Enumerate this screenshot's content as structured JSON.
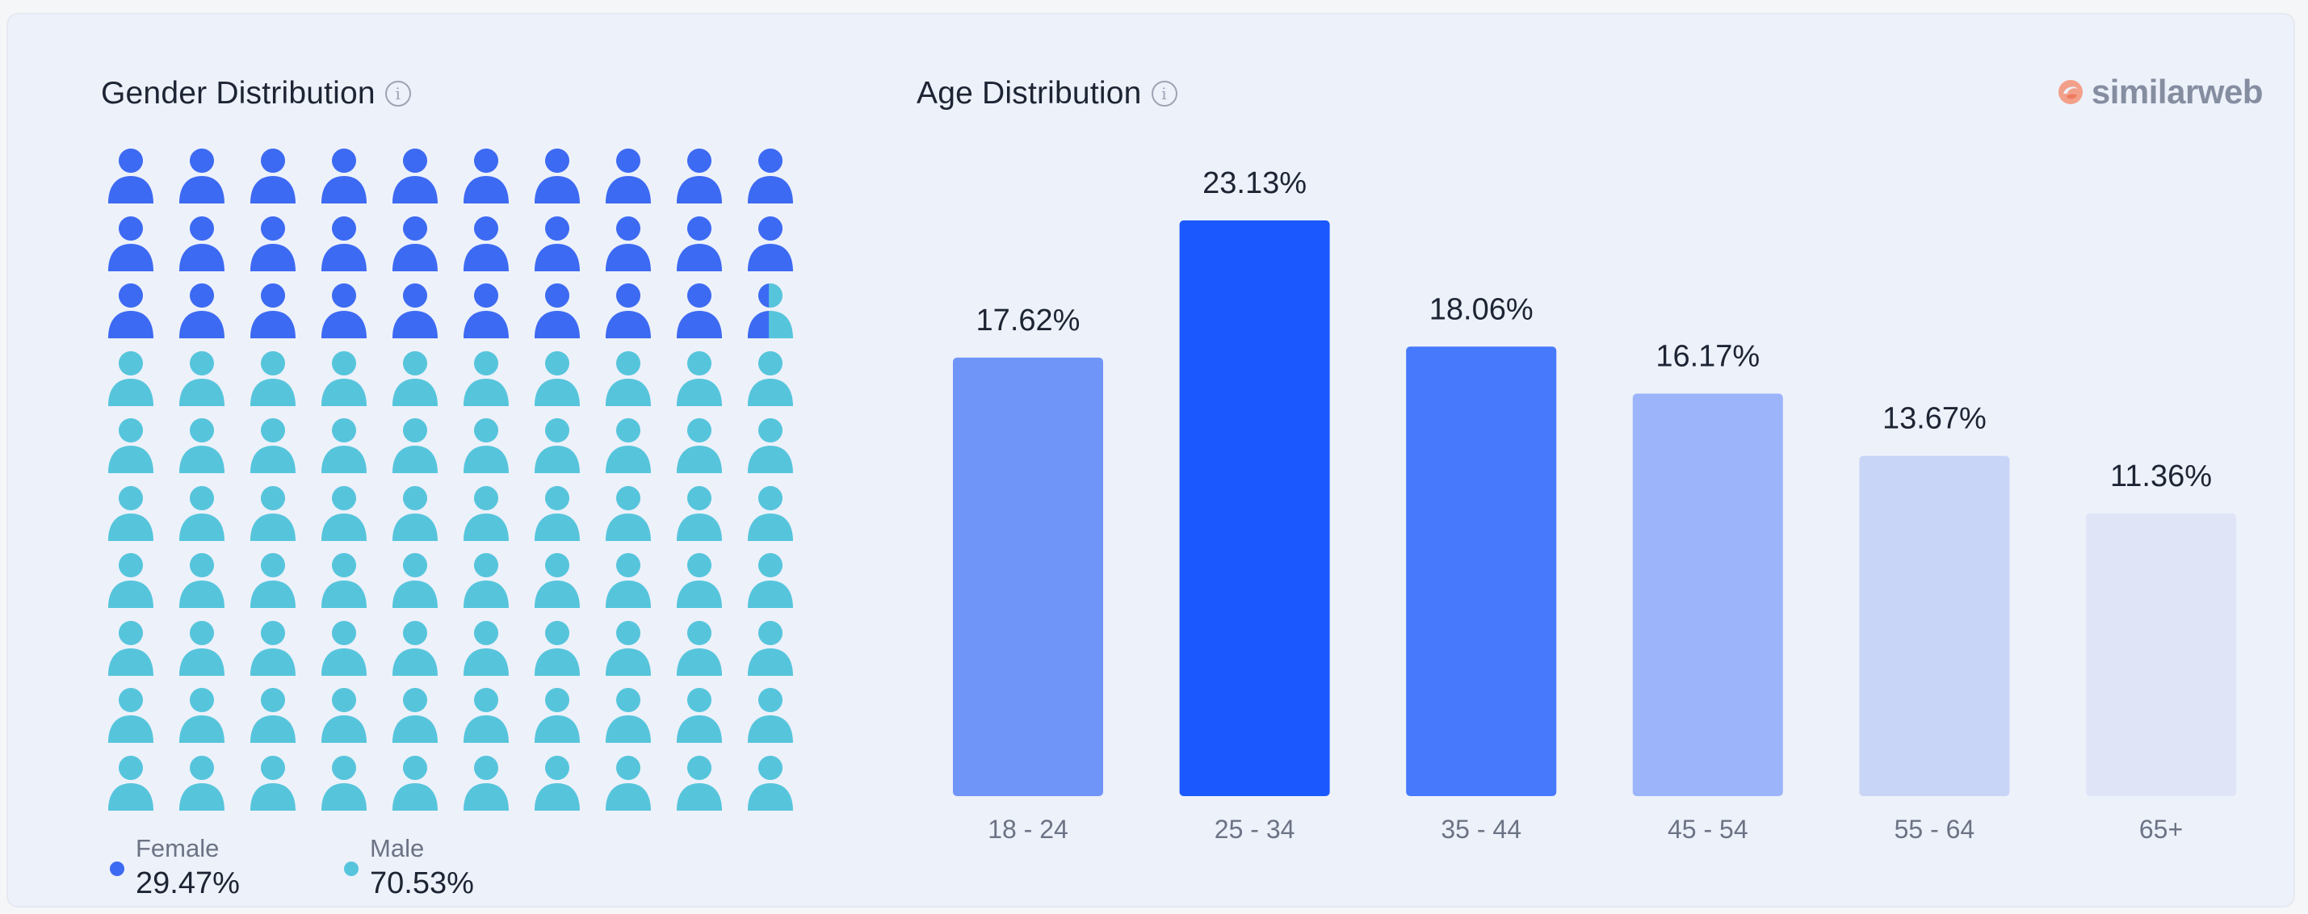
{
  "gender": {
    "title": "Gender Distribution",
    "info_icon": "info-icon",
    "grid": {
      "rows": 10,
      "cols": 10
    },
    "female": {
      "label": "Female",
      "value": "29.47%",
      "share": 29.47,
      "color": "#3d6af2"
    },
    "male": {
      "label": "Male",
      "value": "70.53%",
      "share": 70.53,
      "color": "#56c5dc"
    }
  },
  "age": {
    "title": "Age Distribution",
    "info_icon": "info-icon"
  },
  "brand": {
    "name": "similarweb",
    "icon": "similarweb-logo-icon"
  },
  "chart_data": {
    "type": "bar",
    "title": "Age Distribution",
    "categories": [
      "18 - 24",
      "25 - 34",
      "35 - 44",
      "45 - 54",
      "55 - 64",
      "65+"
    ],
    "values": [
      17.62,
      23.13,
      18.06,
      16.17,
      13.67,
      11.36
    ],
    "labels": [
      "17.62%",
      "23.13%",
      "18.06%",
      "16.17%",
      "13.67%",
      "11.36%"
    ],
    "colors": [
      "#7095f8",
      "#1b59ff",
      "#4679fb",
      "#9cb4fa",
      "#c9d5f7",
      "#dfe4f7"
    ],
    "xlabel": "",
    "ylabel": "",
    "ylim": [
      0,
      23.13
    ],
    "grid": false,
    "legend": "none"
  }
}
